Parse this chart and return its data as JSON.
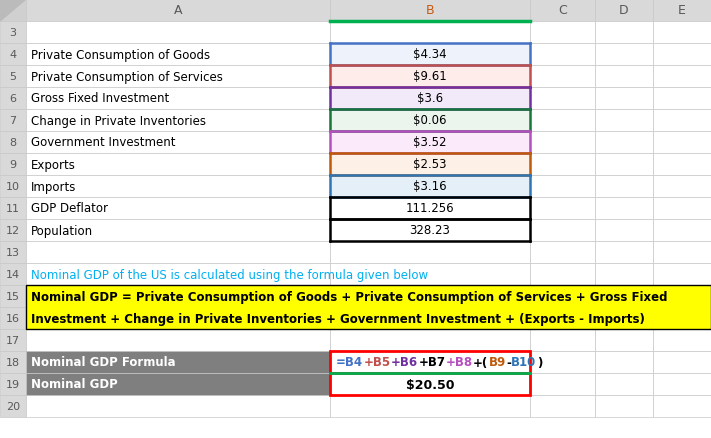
{
  "data_rows": [
    {
      "row": 4,
      "label": "Private Consumption of Goods",
      "value": "$4.34",
      "border_color": "#4472C4",
      "bg_color": "#EEF3FB"
    },
    {
      "row": 5,
      "label": "Private Consumption of Services",
      "value": "$9.61",
      "border_color": "#C0504D",
      "bg_color": "#FDECEA"
    },
    {
      "row": 6,
      "label": "Gross Fixed Investment",
      "value": "$3.6",
      "border_color": "#7030A0",
      "bg_color": "#F2EAF8"
    },
    {
      "row": 7,
      "label": "Change in Private Inventories",
      "value": "$0.06",
      "border_color": "#17763C",
      "bg_color": "#EBF5EE"
    },
    {
      "row": 8,
      "label": "Government Investment",
      "value": "$3.52",
      "border_color": "#B54FBF",
      "bg_color": "#FAEAFA"
    },
    {
      "row": 9,
      "label": "Exports",
      "value": "$2.53",
      "border_color": "#BE5A0A",
      "bg_color": "#FDF0E6"
    },
    {
      "row": 10,
      "label": "Imports",
      "value": "$3.16",
      "border_color": "#2E75B6",
      "bg_color": "#E5EFF8"
    },
    {
      "row": 11,
      "label": "GDP Deflator",
      "value": "111.256",
      "border_color": "#000000",
      "bg_color": "#FFFFFF"
    },
    {
      "row": 12,
      "label": "Population",
      "value": "328.23",
      "border_color": "#000000",
      "bg_color": "#FFFFFF"
    }
  ],
  "note_text": "Nominal GDP of the US is calculated using the formula given below",
  "note_color": "#00B0F0",
  "formula_text_line1": "Nominal GDP = Private Consumption of Goods + Private Consumption of Services + Gross Fixed",
  "formula_text_line2": "Investment + Change in Private Inventories + Government Investment + (Exports - Imports)",
  "formula_bg": "#FFFF00",
  "formula_border": "#000000",
  "formula_text_color": "#000000",
  "formula_parts": [
    {
      "text": "=B4",
      "color": "#4472C4"
    },
    {
      "text": "+B5",
      "color": "#C0504D"
    },
    {
      "text": "+B6",
      "color": "#7030A0"
    },
    {
      "text": "+B7",
      "color": "#000000"
    },
    {
      "text": "+B8",
      "color": "#B54FBF"
    },
    {
      "text": "+(",
      "color": "#000000"
    },
    {
      "text": "B9",
      "color": "#BE5A0A"
    },
    {
      "text": "-",
      "color": "#000000"
    },
    {
      "text": "B10",
      "color": "#2E75B6"
    },
    {
      "text": ")",
      "color": "#000000"
    }
  ],
  "gdp_result": "$20.50",
  "bg_color": "#FFFFFF",
  "grid_color": "#C8C8C8",
  "header_bg": "#D9D9D9",
  "header_text_color": "#595959",
  "row_num_color": "#595959",
  "gray_cell_bg": "#7F7F7F",
  "gray_cell_text": "#FFFFFF",
  "red_border": "#FF0000",
  "green_line": "#00B050",
  "col_b_header_color": "#C55A11"
}
